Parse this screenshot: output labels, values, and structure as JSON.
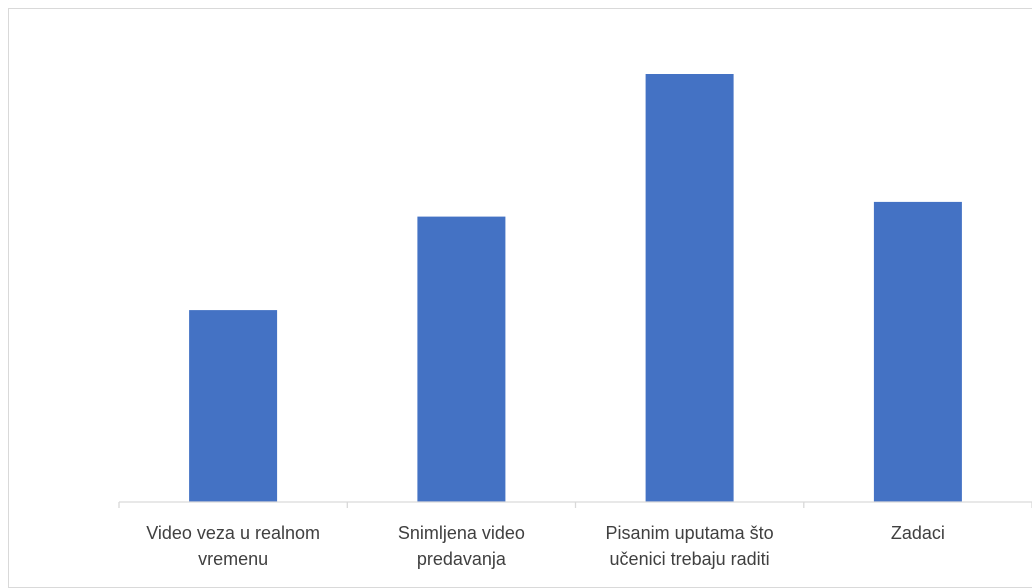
{
  "chart_data": {
    "type": "bar",
    "title": "",
    "xlabel": "",
    "ylabel": "",
    "categories": [
      [
        "Video veza u realnom",
        "vremenu"
      ],
      [
        "Snimljena video",
        "predavanja"
      ],
      [
        "Pisanim uputama što",
        "učenici trebaju raditi"
      ],
      [
        "Zadaci"
      ]
    ],
    "values": [
      39,
      58,
      87,
      61
    ],
    "ylim": [
      0,
      100
    ],
    "grid": false,
    "legend": "none",
    "colors": {
      "bar": "#4472C4",
      "axis": "#d9d9d9",
      "label": "#404040",
      "frame": "#d9d9d9"
    }
  }
}
